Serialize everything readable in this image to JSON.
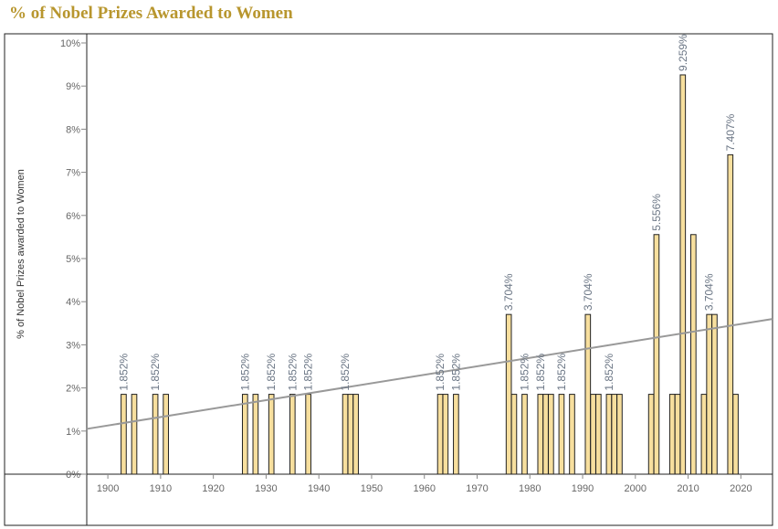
{
  "page": {
    "title": "% of Nobel Prizes Awarded to Women"
  },
  "chart_data": {
    "type": "bar",
    "title": "% of Nobel Prizes Awarded to Women",
    "xlabel": "",
    "ylabel": "% of Nobel Prizes awarded to Women",
    "xlim": [
      1896,
      2026
    ],
    "ylim": [
      0,
      10
    ],
    "x_ticks": [
      "1900",
      "1910",
      "1920",
      "1930",
      "1940",
      "1950",
      "1960",
      "1970",
      "1980",
      "1990",
      "2000",
      "2010",
      "2020"
    ],
    "y_ticks": [
      "0%",
      "1%",
      "2%",
      "3%",
      "4%",
      "5%",
      "6%",
      "7%",
      "8%",
      "9%",
      "10%"
    ],
    "grid": false,
    "legend": "none",
    "colors": {
      "bar_fill": "#f7df9e",
      "bar_stroke": "#222222",
      "trend": "#999999",
      "title": "#b8962e"
    },
    "series": [
      {
        "values": [
          {
            "x": 1903,
            "y": 1.852,
            "label": "1.852%"
          },
          {
            "x": 1905,
            "y": 1.852
          },
          {
            "x": 1909,
            "y": 1.852,
            "label": "1.852%"
          },
          {
            "x": 1911,
            "y": 1.852
          },
          {
            "x": 1926,
            "y": 1.852,
            "label": "1.852%"
          },
          {
            "x": 1928,
            "y": 1.852
          },
          {
            "x": 1931,
            "y": 1.852,
            "label": "1.852%"
          },
          {
            "x": 1935,
            "y": 1.852,
            "label": "1.852%"
          },
          {
            "x": 1938,
            "y": 1.852,
            "label": "1.852%"
          },
          {
            "x": 1945,
            "y": 1.852,
            "label": "1.852%"
          },
          {
            "x": 1946,
            "y": 1.852
          },
          {
            "x": 1947,
            "y": 1.852
          },
          {
            "x": 1963,
            "y": 1.852,
            "label": "1.852%"
          },
          {
            "x": 1964,
            "y": 1.852
          },
          {
            "x": 1966,
            "y": 1.852,
            "label": "1.852%"
          },
          {
            "x": 1976,
            "y": 3.704,
            "label": "3.704%"
          },
          {
            "x": 1977,
            "y": 1.852
          },
          {
            "x": 1979,
            "y": 1.852,
            "label": "1.852%"
          },
          {
            "x": 1982,
            "y": 1.852,
            "label": "1.852%"
          },
          {
            "x": 1983,
            "y": 1.852
          },
          {
            "x": 1984,
            "y": 1.852
          },
          {
            "x": 1986,
            "y": 1.852,
            "label": "1.852%"
          },
          {
            "x": 1988,
            "y": 1.852
          },
          {
            "x": 1991,
            "y": 3.704,
            "label": "3.704%"
          },
          {
            "x": 1992,
            "y": 1.852
          },
          {
            "x": 1993,
            "y": 1.852
          },
          {
            "x": 1995,
            "y": 1.852,
            "label": "1.852%"
          },
          {
            "x": 1996,
            "y": 1.852
          },
          {
            "x": 1997,
            "y": 1.852
          },
          {
            "x": 2003,
            "y": 1.852
          },
          {
            "x": 2004,
            "y": 5.556,
            "label": "5.556%"
          },
          {
            "x": 2007,
            "y": 1.852
          },
          {
            "x": 2008,
            "y": 1.852
          },
          {
            "x": 2009,
            "y": 9.259,
            "label": "9.259%"
          },
          {
            "x": 2011,
            "y": 5.556
          },
          {
            "x": 2013,
            "y": 1.852
          },
          {
            "x": 2014,
            "y": 3.704,
            "label": "3.704%"
          },
          {
            "x": 2015,
            "y": 3.704
          },
          {
            "x": 2018,
            "y": 7.407,
            "label": "7.407%"
          },
          {
            "x": 2019,
            "y": 1.852
          }
        ]
      }
    ],
    "trend_line": {
      "x": [
        1896,
        2026
      ],
      "y": [
        1.05,
        3.6
      ]
    }
  }
}
